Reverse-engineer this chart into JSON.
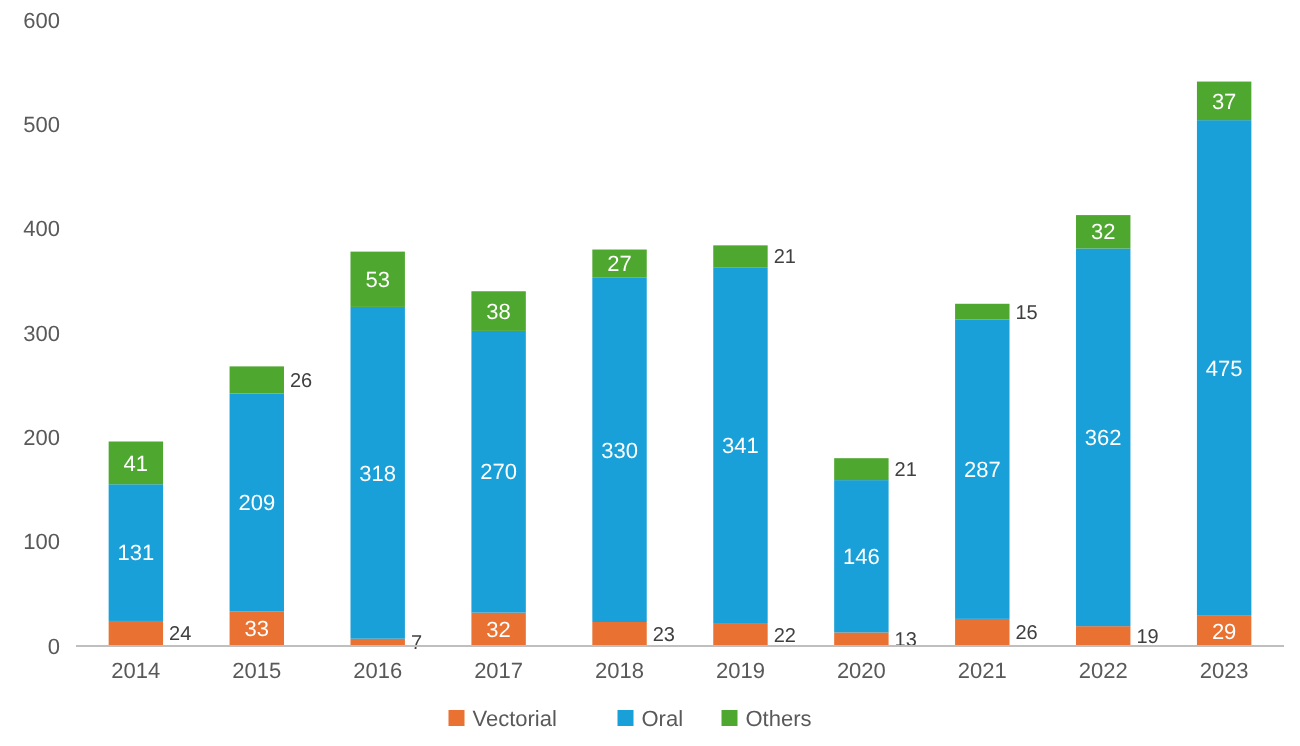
{
  "chart_data": {
    "type": "bar",
    "stacked": true,
    "categories": [
      "2014",
      "2015",
      "2016",
      "2017",
      "2018",
      "2019",
      "2020",
      "2021",
      "2022",
      "2023"
    ],
    "series": [
      {
        "name": "Vectorial",
        "color": "#e97132",
        "values": [
          24,
          33,
          7,
          32,
          23,
          22,
          13,
          26,
          19,
          29
        ]
      },
      {
        "name": "Oral",
        "color": "#1aa0d8",
        "values": [
          131,
          209,
          318,
          270,
          330,
          341,
          146,
          287,
          362,
          475
        ]
      },
      {
        "name": "Others",
        "color": "#4ea72e",
        "values": [
          41,
          26,
          53,
          38,
          27,
          21,
          21,
          15,
          32,
          37
        ]
      }
    ],
    "ylim": [
      0,
      600
    ],
    "yticks": [
      0,
      100,
      200,
      300,
      400,
      500,
      600
    ],
    "grid": false,
    "legend": "bottom",
    "data_labels": true
  }
}
